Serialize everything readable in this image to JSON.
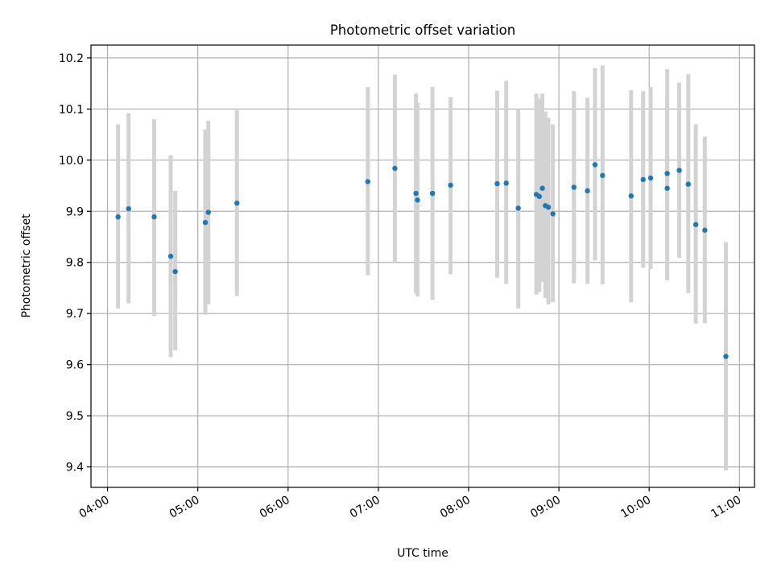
{
  "chart_data": {
    "type": "scatter",
    "title": "Photometric offset variation",
    "xlabel": "UTC time",
    "ylabel": "Photometric offset",
    "x_ticks": [
      "04:00",
      "05:00",
      "06:00",
      "07:00",
      "08:00",
      "09:00",
      "10:00",
      "11:00"
    ],
    "y_ticks": [
      "9.4",
      "9.5",
      "9.6",
      "9.7",
      "9.8",
      "9.9",
      "10.0",
      "10.1",
      "10.2"
    ],
    "xlim": [
      "03:49",
      "11:10"
    ],
    "ylim": [
      9.36,
      10.225
    ],
    "grid": true,
    "point_color": "#1f77b4",
    "errorbar_color": "#d3d3d3",
    "points": [
      {
        "t": "04:07",
        "y": 9.889,
        "lo": 9.71,
        "hi": 10.07
      },
      {
        "t": "04:14",
        "y": 9.905,
        "lo": 9.72,
        "hi": 10.092
      },
      {
        "t": "04:31",
        "y": 9.889,
        "lo": 9.695,
        "hi": 10.08
      },
      {
        "t": "04:42",
        "y": 9.812,
        "lo": 9.615,
        "hi": 10.01
      },
      {
        "t": "04:45",
        "y": 9.782,
        "lo": 9.628,
        "hi": 9.94
      },
      {
        "t": "05:05",
        "y": 9.878,
        "lo": 9.698,
        "hi": 10.06
      },
      {
        "t": "05:07",
        "y": 9.898,
        "lo": 9.718,
        "hi": 10.077
      },
      {
        "t": "05:26",
        "y": 9.916,
        "lo": 9.734,
        "hi": 10.098
      },
      {
        "t": "06:53",
        "y": 9.958,
        "lo": 9.775,
        "hi": 10.143
      },
      {
        "t": "07:11",
        "y": 9.984,
        "lo": 9.8,
        "hi": 10.167
      },
      {
        "t": "07:25",
        "y": 9.935,
        "lo": 9.74,
        "hi": 10.13
      },
      {
        "t": "07:26",
        "y": 9.922,
        "lo": 9.733,
        "hi": 10.112
      },
      {
        "t": "07:36",
        "y": 9.935,
        "lo": 9.727,
        "hi": 10.143
      },
      {
        "t": "07:48",
        "y": 9.951,
        "lo": 9.777,
        "hi": 10.123
      },
      {
        "t": "08:19",
        "y": 9.954,
        "lo": 9.77,
        "hi": 10.136
      },
      {
        "t": "08:25",
        "y": 9.955,
        "lo": 9.758,
        "hi": 10.155
      },
      {
        "t": "08:33",
        "y": 9.906,
        "lo": 9.71,
        "hi": 10.1
      },
      {
        "t": "08:45",
        "y": 9.933,
        "lo": 9.737,
        "hi": 10.13
      },
      {
        "t": "08:47",
        "y": 9.929,
        "lo": 9.742,
        "hi": 10.12
      },
      {
        "t": "08:49",
        "y": 9.945,
        "lo": 9.762,
        "hi": 10.13
      },
      {
        "t": "08:51",
        "y": 9.911,
        "lo": 9.73,
        "hi": 10.095
      },
      {
        "t": "08:53",
        "y": 9.908,
        "lo": 9.718,
        "hi": 10.083
      },
      {
        "t": "08:56",
        "y": 9.895,
        "lo": 9.722,
        "hi": 10.07
      },
      {
        "t": "09:10",
        "y": 9.947,
        "lo": 9.759,
        "hi": 10.135
      },
      {
        "t": "09:19",
        "y": 9.94,
        "lo": 9.758,
        "hi": 10.122
      },
      {
        "t": "09:24",
        "y": 9.991,
        "lo": 9.804,
        "hi": 10.18
      },
      {
        "t": "09:29",
        "y": 9.97,
        "lo": 9.757,
        "hi": 10.185
      },
      {
        "t": "09:48",
        "y": 9.93,
        "lo": 9.722,
        "hi": 10.137
      },
      {
        "t": "09:56",
        "y": 9.962,
        "lo": 9.79,
        "hi": 10.135
      },
      {
        "t": "10:01",
        "y": 9.965,
        "lo": 9.787,
        "hi": 10.143
      },
      {
        "t": "10:12",
        "y": 9.974,
        "lo": 9.77,
        "hi": 10.178
      },
      {
        "t": "10:12",
        "y": 9.945,
        "lo": 9.765,
        "hi": 10.125
      },
      {
        "t": "10:20",
        "y": 9.98,
        "lo": 9.809,
        "hi": 10.152
      },
      {
        "t": "10:26",
        "y": 9.953,
        "lo": 9.74,
        "hi": 10.168
      },
      {
        "t": "10:31",
        "y": 9.874,
        "lo": 9.68,
        "hi": 10.07
      },
      {
        "t": "10:37",
        "y": 9.863,
        "lo": 9.681,
        "hi": 10.046
      },
      {
        "t": "10:51",
        "y": 9.616,
        "lo": 9.393,
        "hi": 9.84
      }
    ]
  }
}
